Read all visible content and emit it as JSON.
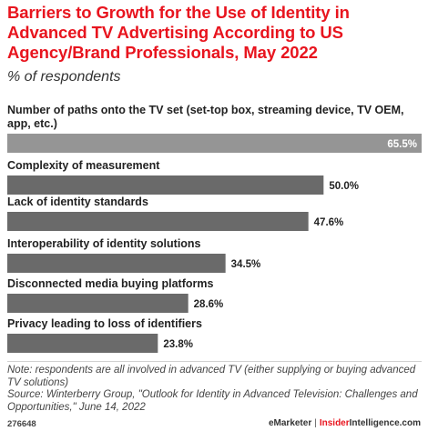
{
  "colors": {
    "title": "#e8141e",
    "bar": "#6a6a6a",
    "top_bar": "#959595",
    "value_inside": "#ffffff",
    "value_outside": "#222222",
    "brand_accent": "#e8141e"
  },
  "header": {
    "title": "Barriers to Growth for the Use of Identity in Advanced TV Advertising According to US Agency/Brand Professionals, May 2022",
    "subtitle": "% of respondents"
  },
  "chart_data": {
    "type": "bar",
    "orientation": "horizontal",
    "title": "Barriers to Growth for the Use of Identity in Advanced TV Advertising According to US Agency/Brand Professionals, May 2022",
    "subtitle": "% of respondents",
    "categories": [
      "Number of paths onto the TV set (set-top box, streaming device, TV OEM, app, etc.)",
      "Complexity of measurement",
      "Lack of identity standards",
      "Interoperability of identity solutions",
      "Disconnected media buying platforms",
      "Privacy leading to loss of identifiers"
    ],
    "category_lines": [
      [
        "Number of paths onto the TV set (set-top box, streaming device, TV OEM,",
        "app, etc.)"
      ],
      [
        "Complexity of measurement"
      ],
      [
        "Lack of identity standards"
      ],
      [
        "Interoperability of identity solutions"
      ],
      [
        "Disconnected media buying platforms"
      ],
      [
        "Privacy leading to loss of identifiers"
      ]
    ],
    "values": [
      65.5,
      50.0,
      47.6,
      34.5,
      28.6,
      23.8
    ],
    "value_labels": [
      "65.5%",
      "50.0%",
      "47.6%",
      "34.5%",
      "28.6%",
      "23.8%"
    ],
    "xlim": [
      0,
      65.5
    ],
    "grid": false,
    "legend": "none"
  },
  "footer": {
    "note": "Note: respondents are all involved in advanced TV (either supplying or buying advanced TV solutions)",
    "source": "Source: Winterberry Group, \"Outlook for Identity in Advanced Television: Challenges and Opportunities,\" June 14, 2022",
    "chart_id": "276648",
    "brand_left": "eMarketer",
    "separator": "|",
    "brand_right": "InsiderIntelligence.com"
  }
}
